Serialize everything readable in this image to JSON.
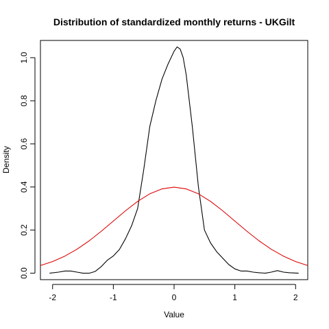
{
  "chart_data": {
    "type": "line",
    "title": "Distribution of standardized monthly returns - UKGilt",
    "xlabel": "Value",
    "ylabel": "Density",
    "xlim": [
      -2.2,
      2.2
    ],
    "ylim": [
      -0.03,
      1.08
    ],
    "x_ticks": [
      -2,
      -1,
      0,
      1,
      2
    ],
    "y_ticks": [
      0.0,
      0.2,
      0.4,
      0.6,
      0.8,
      1.0
    ],
    "x_tick_labels": [
      "-2",
      "-1",
      "0",
      "1",
      "2"
    ],
    "y_tick_labels": [
      "0.0",
      "0.2",
      "0.4",
      "0.6",
      "0.8",
      "1.0"
    ],
    "grid": false,
    "series": [
      {
        "color": "#000000",
        "x": [
          -2.05,
          -1.9,
          -1.8,
          -1.7,
          -1.6,
          -1.5,
          -1.4,
          -1.3,
          -1.2,
          -1.1,
          -1.0,
          -0.9,
          -0.8,
          -0.7,
          -0.6,
          -0.5,
          -0.4,
          -0.3,
          -0.2,
          -0.1,
          0.0,
          0.05,
          0.1,
          0.15,
          0.2,
          0.3,
          0.4,
          0.5,
          0.6,
          0.7,
          0.8,
          0.9,
          1.0,
          1.1,
          1.2,
          1.3,
          1.4,
          1.5,
          1.6,
          1.7,
          1.8,
          1.9,
          2.05
        ],
        "y": [
          0.0,
          0.005,
          0.01,
          0.01,
          0.005,
          0.0,
          0.0,
          0.008,
          0.03,
          0.06,
          0.08,
          0.11,
          0.16,
          0.22,
          0.3,
          0.48,
          0.68,
          0.8,
          0.9,
          0.97,
          1.03,
          1.05,
          1.04,
          1.0,
          0.92,
          0.68,
          0.4,
          0.2,
          0.14,
          0.1,
          0.07,
          0.04,
          0.02,
          0.01,
          0.01,
          0.005,
          0.002,
          0.0,
          0.005,
          0.012,
          0.005,
          0.002,
          0.0
        ]
      },
      {
        "color": "#dd0000",
        "x": [
          -2.2,
          -2.0,
          -1.8,
          -1.6,
          -1.4,
          -1.2,
          -1.0,
          -0.8,
          -0.6,
          -0.4,
          -0.2,
          0.0,
          0.2,
          0.4,
          0.6,
          0.8,
          1.0,
          1.2,
          1.4,
          1.6,
          1.8,
          2.0,
          2.2
        ],
        "y": [
          0.0355,
          0.054,
          0.079,
          0.1109,
          0.1497,
          0.1942,
          0.242,
          0.2897,
          0.3332,
          0.3683,
          0.391,
          0.3989,
          0.391,
          0.3683,
          0.3332,
          0.2897,
          0.242,
          0.1942,
          0.1497,
          0.1109,
          0.079,
          0.054,
          0.0355
        ]
      }
    ]
  }
}
